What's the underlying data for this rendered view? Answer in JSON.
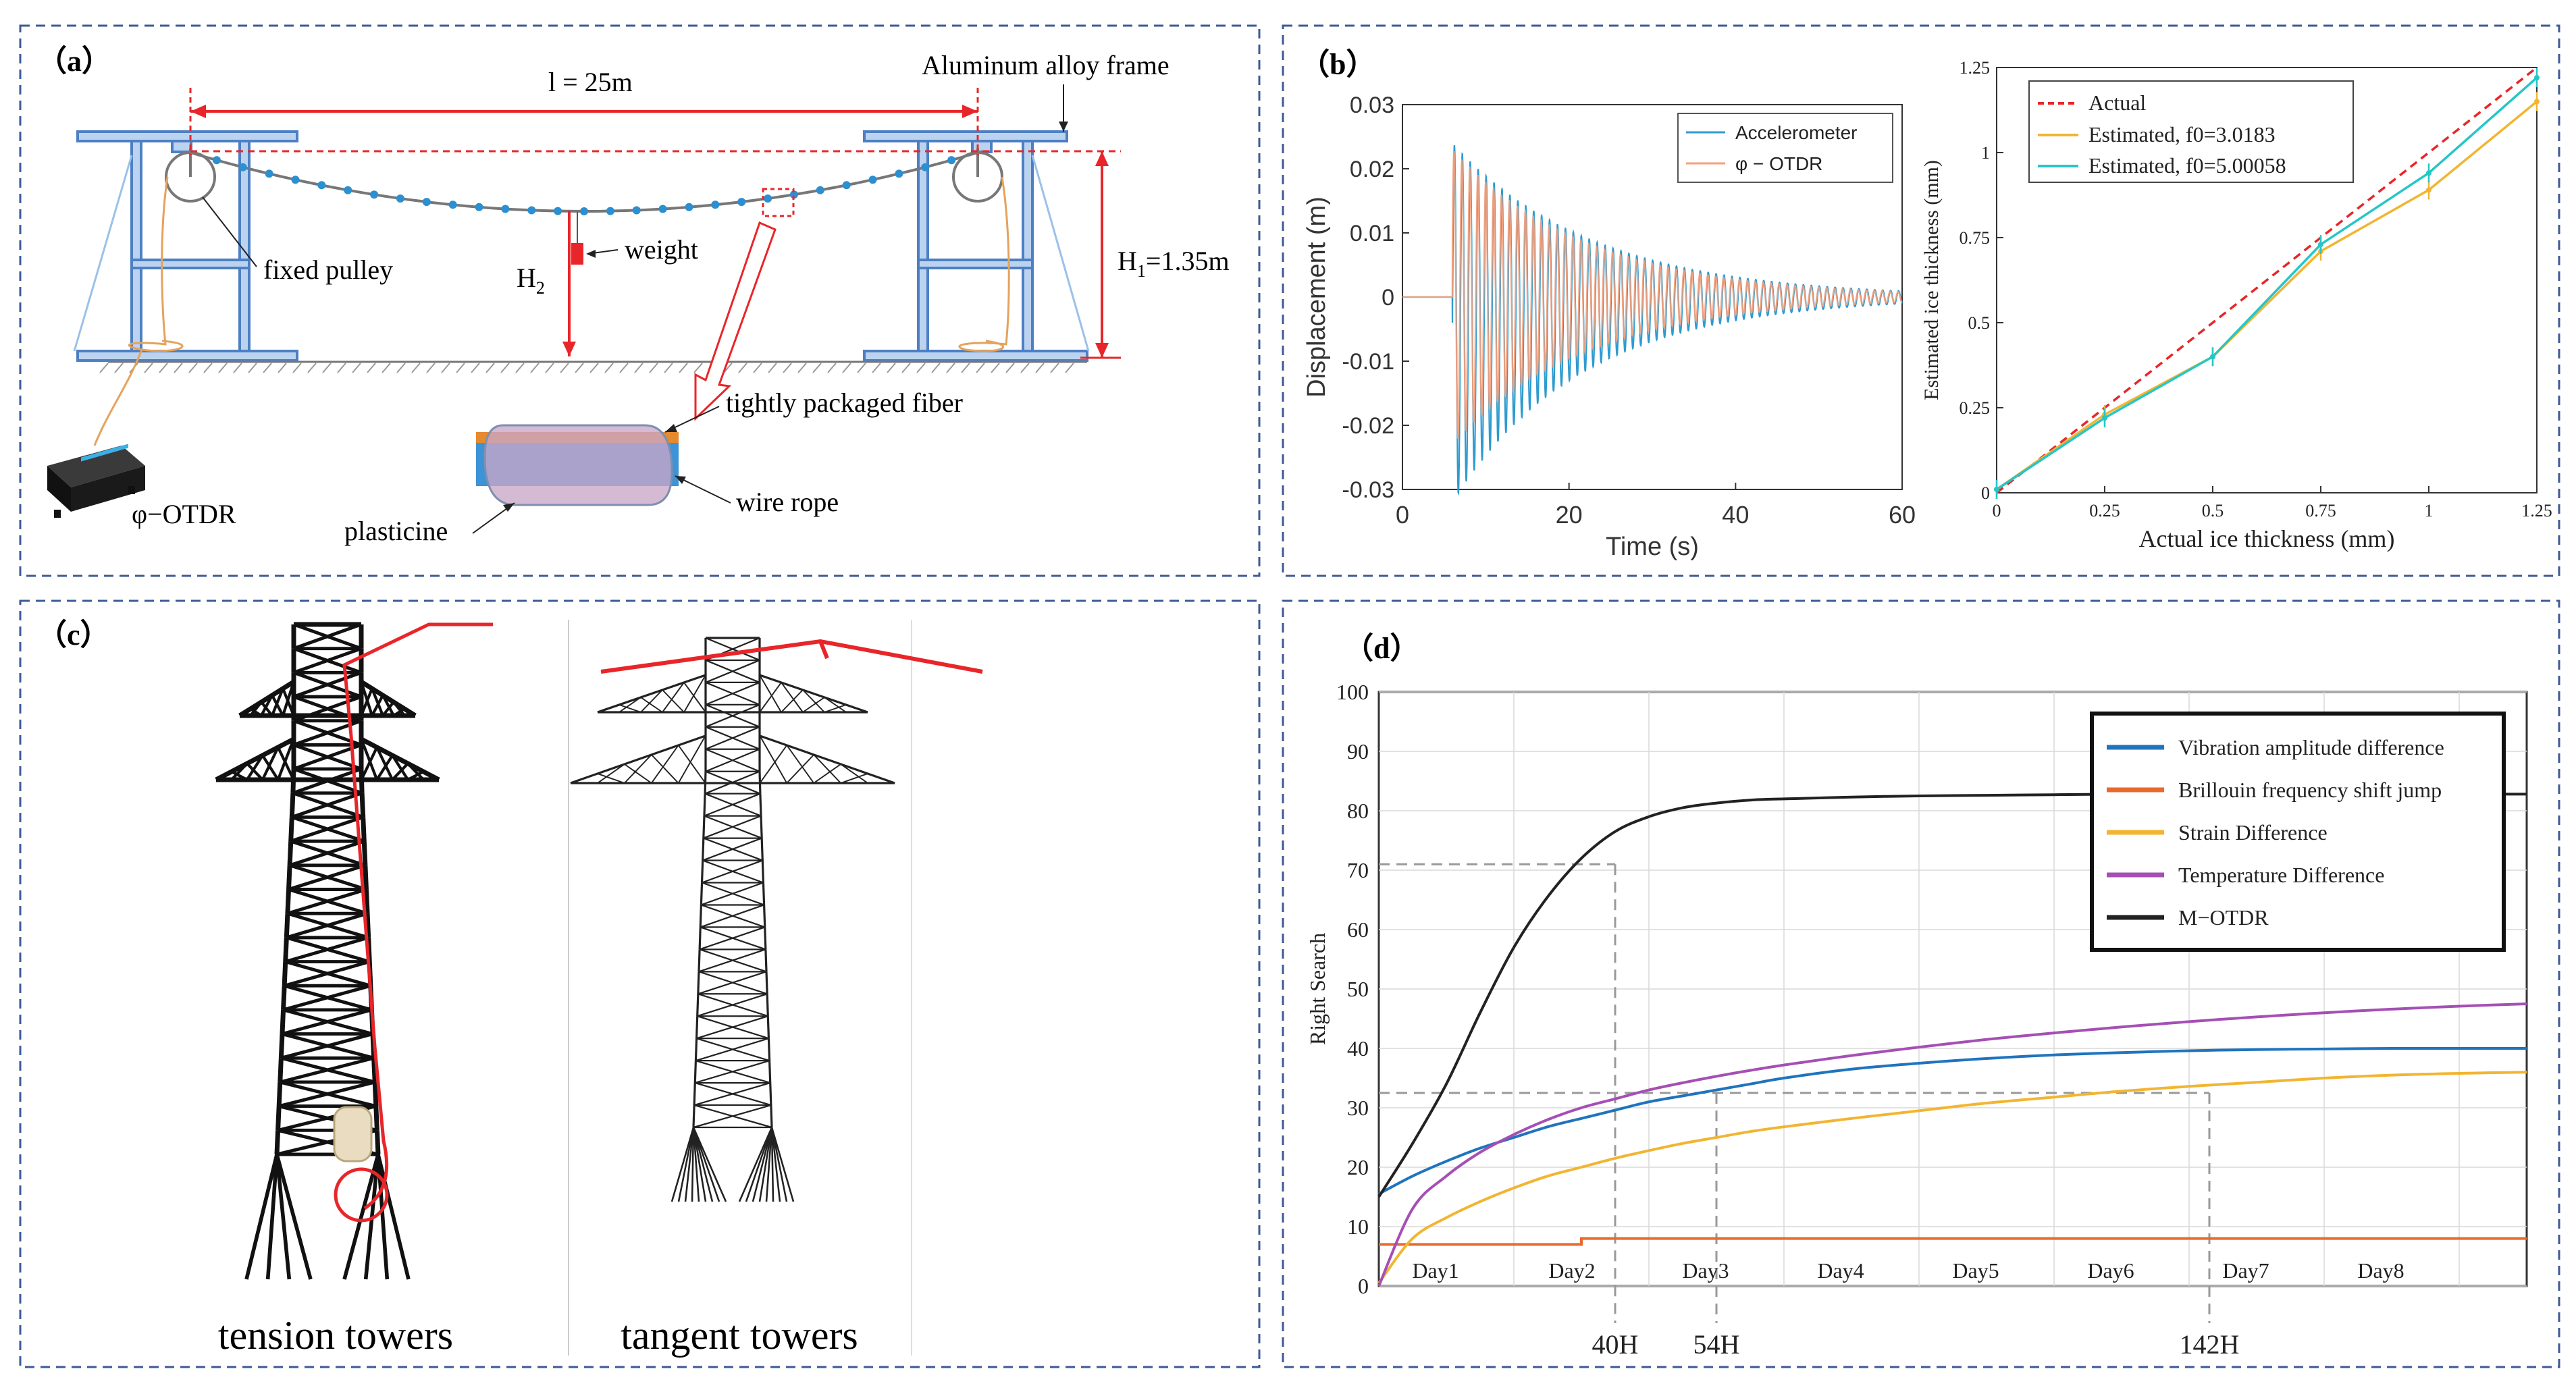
{
  "panels": {
    "a": {
      "letter": "（a）",
      "span_label": "l = 25m",
      "frame_label": "Aluminum alloy frame",
      "pulley_label": "fixed pulley",
      "weight_label": "weight",
      "h2_label": "H",
      "h2_sub": "2",
      "h1_label": "H",
      "h1_sub": "1",
      "h1_value": "=1.35m",
      "fiber_label": "tightly packaged fiber",
      "rope_label": "wire rope",
      "plasticine_label": "plasticine",
      "device_label": "φ−OTDR"
    },
    "b": {
      "letter": "（b）"
    },
    "c": {
      "letter": "（c）",
      "tension_label": "tension towers",
      "tangent_label": "tangent towers"
    },
    "d": {
      "letter": "（d）"
    }
  },
  "chart_data": [
    {
      "id": "b-left",
      "type": "line",
      "xlabel": "Time (s)",
      "ylabel": "Displacement (m)",
      "xlim": [
        0,
        60
      ],
      "ylim": [
        -0.03,
        0.03
      ],
      "x_ticks": [
        0,
        20,
        40,
        60
      ],
      "y_ticks": [
        0.03,
        0.02,
        0.01,
        0,
        -0.01,
        -0.02,
        -0.03
      ],
      "y_tick_labels": [
        "0.03",
        "0.02",
        "0.01",
        "0",
        "-0.01",
        "-0.02",
        "-0.03"
      ],
      "legend_position": "top-right",
      "series": [
        {
          "name": "Accelerometer",
          "color": "#2e9bcf",
          "onset_s": 6,
          "peak_m": 0.028,
          "decay_per_s": 0.062,
          "freq_hz": 1.05
        },
        {
          "name": "φ − OTDR",
          "color": "#f6a07a",
          "onset_s": 6,
          "peak_m": 0.023,
          "decay_per_s": 0.062,
          "freq_hz": 1.05
        }
      ]
    },
    {
      "id": "b-right",
      "type": "line",
      "xlabel": "Actual ice thickness (mm)",
      "ylabel": "Estimated ice thickness (mm)",
      "xlim": [
        0,
        1.25
      ],
      "ylim": [
        0,
        1.25
      ],
      "x_ticks": [
        0,
        0.25,
        0.5,
        0.75,
        1,
        1.25
      ],
      "x_tick_labels": [
        "0",
        "0.25",
        "0.5",
        "0.75",
        "1",
        "1.25"
      ],
      "y_ticks": [
        0,
        0.25,
        0.5,
        0.75,
        1,
        1.25
      ],
      "y_tick_labels": [
        "0",
        "0.25",
        "0.5",
        "0.75",
        "1",
        "1.25"
      ],
      "legend_position": "top-left",
      "x": [
        0,
        0.25,
        0.5,
        0.75,
        1,
        1.25
      ],
      "series": [
        {
          "name": "Actual",
          "color": "#e8262a",
          "dash": true,
          "values": [
            0,
            0.25,
            0.5,
            0.75,
            1,
            1.25
          ]
        },
        {
          "name": "Estimated, f0=3.0183",
          "color": "#f2b531",
          "values": [
            0.01,
            0.23,
            0.4,
            0.71,
            0.89,
            1.15
          ]
        },
        {
          "name": "Estimated, f0=5.00058",
          "color": "#26c6c6",
          "values": [
            0.01,
            0.22,
            0.4,
            0.73,
            0.94,
            1.22
          ]
        }
      ]
    },
    {
      "id": "d",
      "type": "line",
      "ylabel": "Right Search",
      "ylim": [
        0,
        100
      ],
      "xlim": [
        0,
        8.5
      ],
      "y_ticks": [
        0,
        10,
        20,
        30,
        40,
        50,
        60,
        70,
        80,
        90,
        100
      ],
      "y_tick_labels": [
        "0",
        "10",
        "20",
        "30",
        "40",
        "50",
        "60",
        "70",
        "80",
        "90",
        "100"
      ],
      "day_ticks": [
        1,
        2,
        3,
        4,
        5,
        6,
        7,
        8
      ],
      "day_labels": [
        "Day1",
        "Day2",
        "Day3",
        "Day4",
        "Day5",
        "Day6",
        "Day7",
        "Day8"
      ],
      "day_label_pos": [
        0.42,
        1.43,
        2.42,
        3.42,
        4.42,
        5.42,
        6.42,
        7.42
      ],
      "hour_labels": [
        {
          "label": "40H",
          "day": 1.75
        },
        {
          "label": "54H",
          "day": 2.5
        },
        {
          "label": "142H",
          "day": 6.15
        }
      ],
      "ref_lines": [
        {
          "y": 71,
          "day": 1.75
        },
        {
          "y": 32.5,
          "day": 2.5
        },
        {
          "y": 32.5,
          "day": 6.15
        }
      ],
      "legend_position": "top-right",
      "days": [
        0,
        0.25,
        0.5,
        0.75,
        1,
        1.25,
        1.5,
        1.75,
        2,
        2.25,
        2.5,
        2.75,
        3,
        3.5,
        4,
        4.5,
        5,
        5.5,
        6,
        6.5,
        7,
        7.5,
        8,
        8.5
      ],
      "series": [
        {
          "name": "Vibration amplitude difference",
          "color": "#1f74bd",
          "values": [
            15.5,
            18.5,
            21,
            23.2,
            25,
            26.8,
            28.2,
            29.6,
            31,
            32,
            33,
            34,
            35,
            36.5,
            37.5,
            38.3,
            38.9,
            39.3,
            39.6,
            39.8,
            39.9,
            40,
            40,
            40
          ]
        },
        {
          "name": "Brillouin frequency shift jump",
          "color": "#e9692c",
          "values": [
            7,
            7,
            7,
            7,
            7,
            7,
            8,
            8,
            8,
            8,
            8,
            8,
            8,
            8,
            8,
            8,
            8,
            8,
            8,
            8,
            8,
            8,
            8,
            8
          ]
        },
        {
          "name": "Strain Difference",
          "color": "#f2b531",
          "values": [
            0.5,
            8,
            11.5,
            14.2,
            16.5,
            18.5,
            20,
            21.5,
            22.8,
            24,
            25,
            26,
            26.8,
            28.2,
            29.5,
            30.8,
            31.8,
            32.8,
            33.6,
            34.3,
            35,
            35.5,
            35.8,
            36
          ]
        },
        {
          "name": "Temperature Difference",
          "color": "#a54fb5",
          "values": [
            0,
            13,
            18.5,
            22.5,
            25.5,
            28,
            30,
            31.5,
            33,
            34.2,
            35.3,
            36.3,
            37.2,
            38.8,
            40.2,
            41.5,
            42.6,
            43.6,
            44.5,
            45.3,
            46,
            46.6,
            47.1,
            47.5
          ]
        },
        {
          "name": "M−OTDR",
          "color": "#222222",
          "values": [
            15,
            24,
            34,
            46,
            57,
            65.5,
            72,
            76.5,
            79,
            80.5,
            81.3,
            81.8,
            82,
            82.3,
            82.5,
            82.6,
            82.7,
            82.8,
            82.8,
            82.8,
            82.8,
            82.8,
            82.8,
            82.8
          ]
        }
      ]
    }
  ]
}
